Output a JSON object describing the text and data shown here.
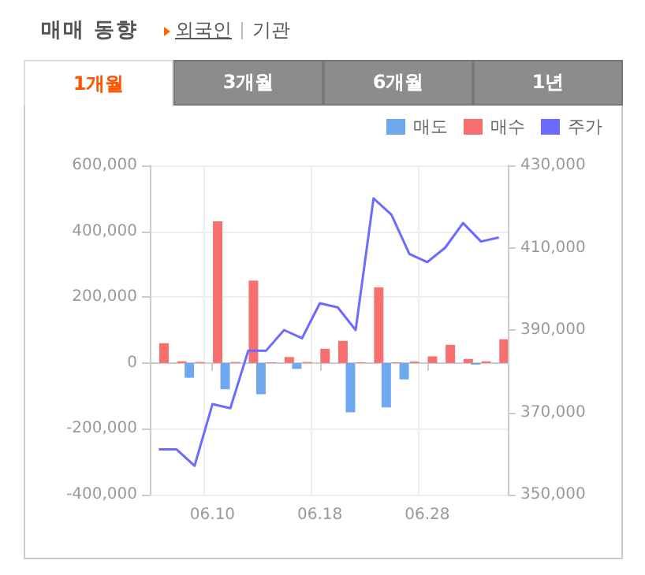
{
  "chart_data": {
    "type": "bar",
    "title": "매매 동향",
    "annotations": [
      "외국인",
      "기관",
      "1개월",
      "3개월",
      "6개월",
      "1년"
    ],
    "categories": [
      null,
      null,
      null,
      "06.10",
      null,
      null,
      null,
      null,
      null,
      "06.18",
      null,
      null,
      null,
      null,
      null,
      "06.28",
      null,
      null,
      null,
      null
    ],
    "series": [
      {
        "name": "매도",
        "color": "#6fa8ee",
        "values": [
          null,
          null,
          -45000,
          null,
          -80000,
          null,
          -95000,
          null,
          -18000,
          null,
          null,
          -150000,
          null,
          -135000,
          -50000,
          null,
          null,
          null,
          -5000,
          null
        ]
      },
      {
        "name": "매수",
        "color": "#f76f6f",
        "values": [
          60000,
          5000,
          3000,
          430000,
          3000,
          250000,
          2000,
          18000,
          3000,
          43000,
          67000,
          2000,
          230000,
          2000,
          4000,
          20000,
          55000,
          12000,
          5000,
          72000
        ]
      },
      {
        "name": "주가",
        "type": "line",
        "axis": "y2",
        "color": "#6b6bff",
        "values": [
          361000,
          361000,
          357000,
          372000,
          371000,
          385000,
          385000,
          390000,
          388000,
          396500,
          395500,
          390000,
          422000,
          418000,
          408500,
          406500,
          410000,
          416000,
          411500,
          412500
        ]
      }
    ],
    "ylim": [
      -400000,
      600000
    ],
    "yticks": [
      {
        "value": -400000,
        "label": "-400,000"
      },
      {
        "value": -200000,
        "label": "-200,000"
      },
      {
        "value": 0,
        "label": "0"
      },
      {
        "value": 200000,
        "label": "200,000"
      },
      {
        "value": 400000,
        "label": "400,000"
      },
      {
        "value": 600000,
        "label": "600,000"
      }
    ],
    "y2lim": [
      350000,
      430000
    ],
    "y2ticks": [
      {
        "value": 350000,
        "label": "350,000"
      },
      {
        "value": 370000,
        "label": "370,000"
      },
      {
        "value": 390000,
        "label": "390,000"
      },
      {
        "value": 410000,
        "label": "410,000"
      },
      {
        "value": 430000,
        "label": "430,000"
      }
    ],
    "grid": true,
    "legend": "top right",
    "marker": "none"
  }
}
